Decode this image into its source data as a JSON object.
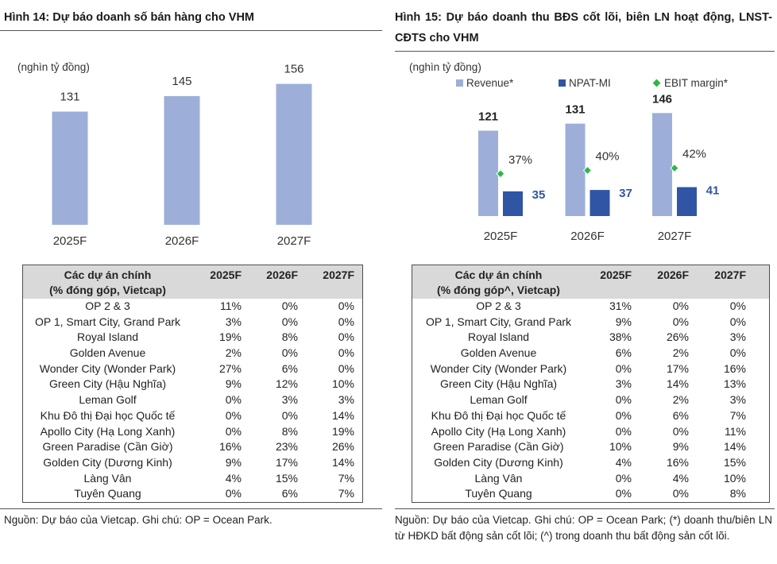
{
  "chart_data": [
    {
      "type": "bar",
      "title": "Hình 14: Dự báo doanh số bán hàng cho VHM",
      "ylabel": "(nghìn tỷ đồng)",
      "xlabel": "",
      "categories": [
        "2025F",
        "2026F",
        "2027F"
      ],
      "values": [
        131,
        145,
        156
      ],
      "ylim": [
        29,
        170
      ],
      "grid": false,
      "color": "#9dafd9"
    },
    {
      "type": "bar",
      "title": "Hình 15: Dự báo doanh thu BĐS cốt lõi, biên LN hoạt động, LNST-CĐTS cho VHM",
      "ylabel": "(nghìn tỷ đồng)",
      "xlabel": "",
      "categories": [
        "2025F",
        "2026F",
        "2027F"
      ],
      "series": [
        {
          "name": "Revenue*",
          "values": [
            121,
            131,
            146
          ],
          "color": "#9dafd9"
        },
        {
          "name": "NPAT-MI",
          "values": [
            35,
            37,
            41
          ],
          "color": "#2f55a4"
        },
        {
          "name": "EBIT margin*",
          "values": [
            37,
            40,
            42
          ],
          "labels": [
            "37%",
            "40%",
            "42%"
          ],
          "color": "#2fb54a"
        }
      ],
      "ylim": [
        0,
        170
      ],
      "y2lim": [
        0,
        105
      ],
      "grid": false,
      "legend": "top"
    }
  ],
  "table_left": {
    "header": {
      "line1": "Các dự án chính",
      "line2": "(% đóng góp, Vietcap)",
      "years": [
        "2025F",
        "2026F",
        "2027F"
      ]
    },
    "rows": [
      {
        "name": "OP 2 & 3",
        "values": [
          "11%",
          "0%",
          "0%"
        ]
      },
      {
        "name": "OP 1, Smart City, Grand Park",
        "values": [
          "3%",
          "0%",
          "0%"
        ]
      },
      {
        "name": "Royal Island",
        "values": [
          "19%",
          "8%",
          "0%"
        ]
      },
      {
        "name": "Golden Avenue",
        "values": [
          "2%",
          "0%",
          "0%"
        ]
      },
      {
        "name": "Wonder City (Wonder Park)",
        "values": [
          "27%",
          "6%",
          "0%"
        ]
      },
      {
        "name": "Green City (Hậu Nghĩa)",
        "values": [
          "9%",
          "12%",
          "10%"
        ]
      },
      {
        "name": "Leman Golf",
        "values": [
          "0%",
          "3%",
          "3%"
        ]
      },
      {
        "name": "Khu Đô thị Đại học Quốc tế",
        "values": [
          "0%",
          "0%",
          "14%"
        ]
      },
      {
        "name": "Apollo City (Hạ Long Xanh)",
        "values": [
          "0%",
          "8%",
          "19%"
        ]
      },
      {
        "name": "Green Paradise (Cần Giờ)",
        "values": [
          "16%",
          "23%",
          "26%"
        ]
      },
      {
        "name": "Golden City (Dương Kinh)",
        "values": [
          "9%",
          "17%",
          "14%"
        ]
      },
      {
        "name": "Làng Vân",
        "values": [
          "4%",
          "15%",
          "7%"
        ]
      },
      {
        "name": "Tuyên Quang",
        "values": [
          "0%",
          "6%",
          "7%"
        ]
      }
    ]
  },
  "table_right": {
    "header": {
      "line1": "Các dự án chính",
      "line2": "(% đóng góp^, Vietcap)",
      "years": [
        "2025F",
        "2026F",
        "2027F"
      ]
    },
    "rows": [
      {
        "name": "OP 2 & 3",
        "values": [
          "31%",
          "0%",
          "0%"
        ]
      },
      {
        "name": "OP 1, Smart City, Grand Park",
        "values": [
          "9%",
          "0%",
          "0%"
        ]
      },
      {
        "name": "Royal Island",
        "values": [
          "38%",
          "26%",
          "3%"
        ]
      },
      {
        "name": "Golden Avenue",
        "values": [
          "6%",
          "2%",
          "0%"
        ]
      },
      {
        "name": "Wonder City (Wonder Park)",
        "values": [
          "0%",
          "17%",
          "16%"
        ]
      },
      {
        "name": "Green City (Hậu Nghĩa)",
        "values": [
          "3%",
          "14%",
          "13%"
        ]
      },
      {
        "name": "Leman Golf",
        "values": [
          "0%",
          "2%",
          "3%"
        ]
      },
      {
        "name": "Khu Đô thị Đại học Quốc tế",
        "values": [
          "0%",
          "6%",
          "7%"
        ]
      },
      {
        "name": "Apollo City (Hạ Long Xanh)",
        "values": [
          "0%",
          "0%",
          "11%"
        ]
      },
      {
        "name": "Green Paradise (Cần Giờ)",
        "values": [
          "10%",
          "9%",
          "14%"
        ]
      },
      {
        "name": "Golden City (Dương Kinh)",
        "values": [
          "4%",
          "16%",
          "15%"
        ]
      },
      {
        "name": "Làng Vân",
        "values": [
          "0%",
          "4%",
          "10%"
        ]
      },
      {
        "name": "Tuyên Quang",
        "values": [
          "0%",
          "0%",
          "8%"
        ]
      }
    ]
  },
  "source_left": "Nguồn: Dự báo của Vietcap. Ghi chú: OP = Ocean Park.",
  "source_right": "Nguồn: Dự báo của Vietcap. Ghi chú: OP = Ocean Park; (*) doanh thu/biên LN từ HĐKD bất động sản cốt lõi; (^) trong doanh thu bất động sản cốt lõi.",
  "colors": {
    "table_header_fill": "#d9d9d9",
    "rule": "#555555",
    "table_border": "#4d4d4d"
  }
}
